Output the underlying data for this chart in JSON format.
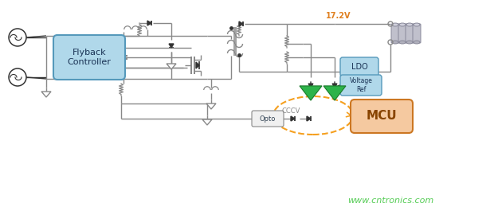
{
  "bg_color": "#ffffff",
  "lc": "#888888",
  "lcd": "#333333",
  "green": "#2db34a",
  "blue_face": "#b0d8ea",
  "blue_edge": "#5599bb",
  "orange_face": "#f5c9a0",
  "orange_edge": "#cc7722",
  "orange_dash": "#f5a020",
  "volt_color": "#e08020",
  "watermark_color": "#55cc55",
  "voltage_text": "17.2V",
  "flyback_text": "Flyback\nController",
  "mcu_text": "MCU",
  "ldo_text": "LDO",
  "vref_text": "Voltage\nRef",
  "opto_text": "Opto",
  "cccv_text": "CCCV",
  "watermark": "www.cntronics.com"
}
